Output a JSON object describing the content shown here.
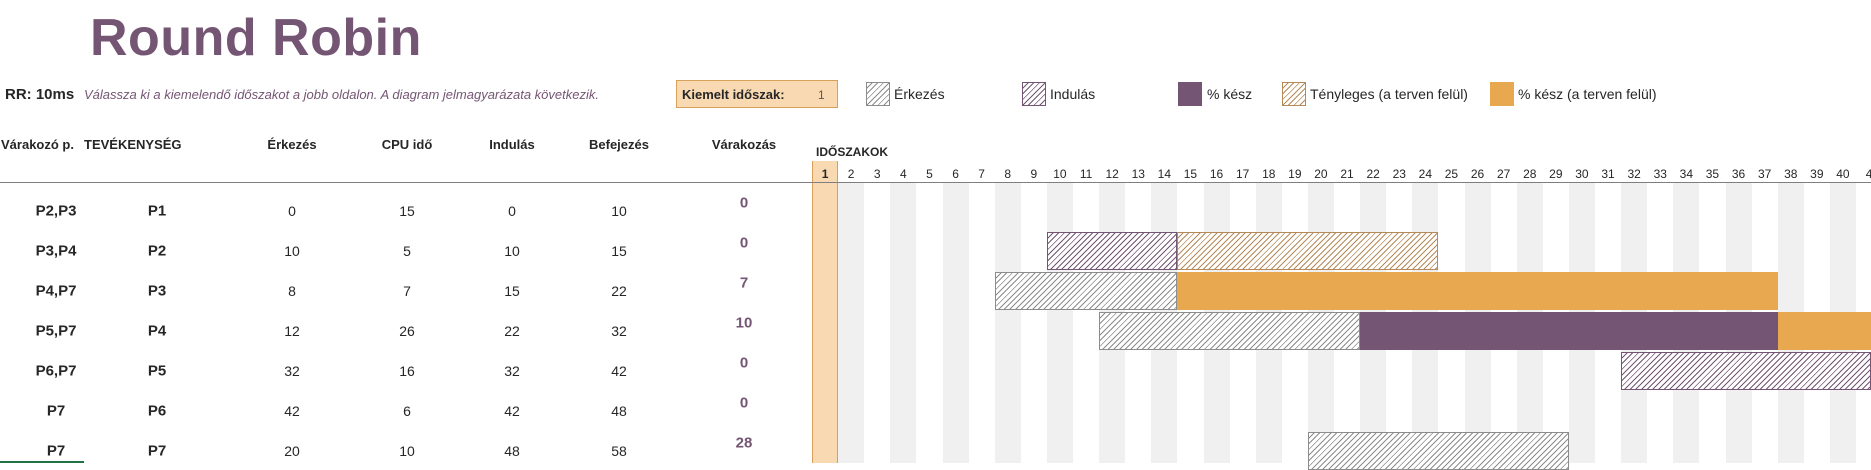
{
  "title": "Round Robin",
  "rr_label": "RR: 10ms",
  "instructions": "Válassza ki a kiemelendő időszakot a jobb oldalon.  A diagram jelmagyarázata következik.",
  "highlight": {
    "label": "Kiemelt időszak:",
    "value": "1"
  },
  "legend": {
    "arrival": "Érkezés",
    "start": "Indulás",
    "percent_done": "% kész",
    "actual": "Tényleges (a terven felül)",
    "percent_done_over": "% kész (a terven felül)"
  },
  "colors": {
    "accent": "#745573",
    "orange": "#e8a84f",
    "highlight": "#f9d9b2"
  },
  "columns": {
    "waiting_p": "Várakozó p.",
    "activity": "TEVÉKENYSÉG",
    "arrival": "Érkezés",
    "cpu": "CPU idő",
    "start": "Indulás",
    "end": "Befejezés",
    "wait": "Várakozás"
  },
  "periods_label": "IDŐSZAKOK",
  "periods": [
    "1",
    "2",
    "3",
    "4",
    "5",
    "6",
    "7",
    "8",
    "9",
    "10",
    "11",
    "12",
    "13",
    "14",
    "15",
    "16",
    "17",
    "18",
    "19",
    "20",
    "21",
    "22",
    "23",
    "24",
    "25",
    "26",
    "27",
    "28",
    "29",
    "30",
    "31",
    "32",
    "33",
    "34",
    "35",
    "36",
    "37",
    "38",
    "39",
    "40",
    "4"
  ],
  "rows": [
    {
      "waiting": "P2,P3",
      "activity": "P1",
      "arrival": "0",
      "cpu": "15",
      "start": "0",
      "end": "10",
      "wait": "0"
    },
    {
      "waiting": "P3,P4",
      "activity": "P2",
      "arrival": "10",
      "cpu": "5",
      "start": "10",
      "end": "15",
      "wait": "0"
    },
    {
      "waiting": "P4,P7",
      "activity": "P3",
      "arrival": "8",
      "cpu": "7",
      "start": "15",
      "end": "22",
      "wait": "7"
    },
    {
      "waiting": "P5,P7",
      "activity": "P4",
      "arrival": "12",
      "cpu": "26",
      "start": "22",
      "end": "32",
      "wait": "10"
    },
    {
      "waiting": "P6,P7",
      "activity": "P5",
      "arrival": "32",
      "cpu": "16",
      "start": "32",
      "end": "42",
      "wait": "0"
    },
    {
      "waiting": "P7",
      "activity": "P6",
      "arrival": "42",
      "cpu": "6",
      "start": "42",
      "end": "48",
      "wait": "0"
    },
    {
      "waiting": "P7",
      "activity": "P7",
      "arrival": "20",
      "cpu": "10",
      "start": "48",
      "end": "58",
      "wait": "28"
    }
  ],
  "gantt_bars": [
    {
      "row": 1,
      "style": "hatch-purple",
      "from": 10,
      "to": 15
    },
    {
      "row": 1,
      "style": "hatch-brown",
      "from": 15,
      "to": 25
    },
    {
      "row": 2,
      "style": "hatch-gray",
      "from": 8,
      "to": 15
    },
    {
      "row": 2,
      "style": "solid-orange",
      "from": 15,
      "to": 38
    },
    {
      "row": 3,
      "style": "hatch-gray",
      "from": 12,
      "to": 22
    },
    {
      "row": 3,
      "style": "solid-purple",
      "from": 22,
      "to": 38
    },
    {
      "row": 3,
      "style": "solid-orange",
      "from": 38,
      "to": 42
    },
    {
      "row": 4,
      "style": "hatch-purple",
      "from": 32,
      "to": 42
    },
    {
      "row": 6,
      "style": "hatch-gray",
      "from": 20,
      "to": 30
    }
  ]
}
